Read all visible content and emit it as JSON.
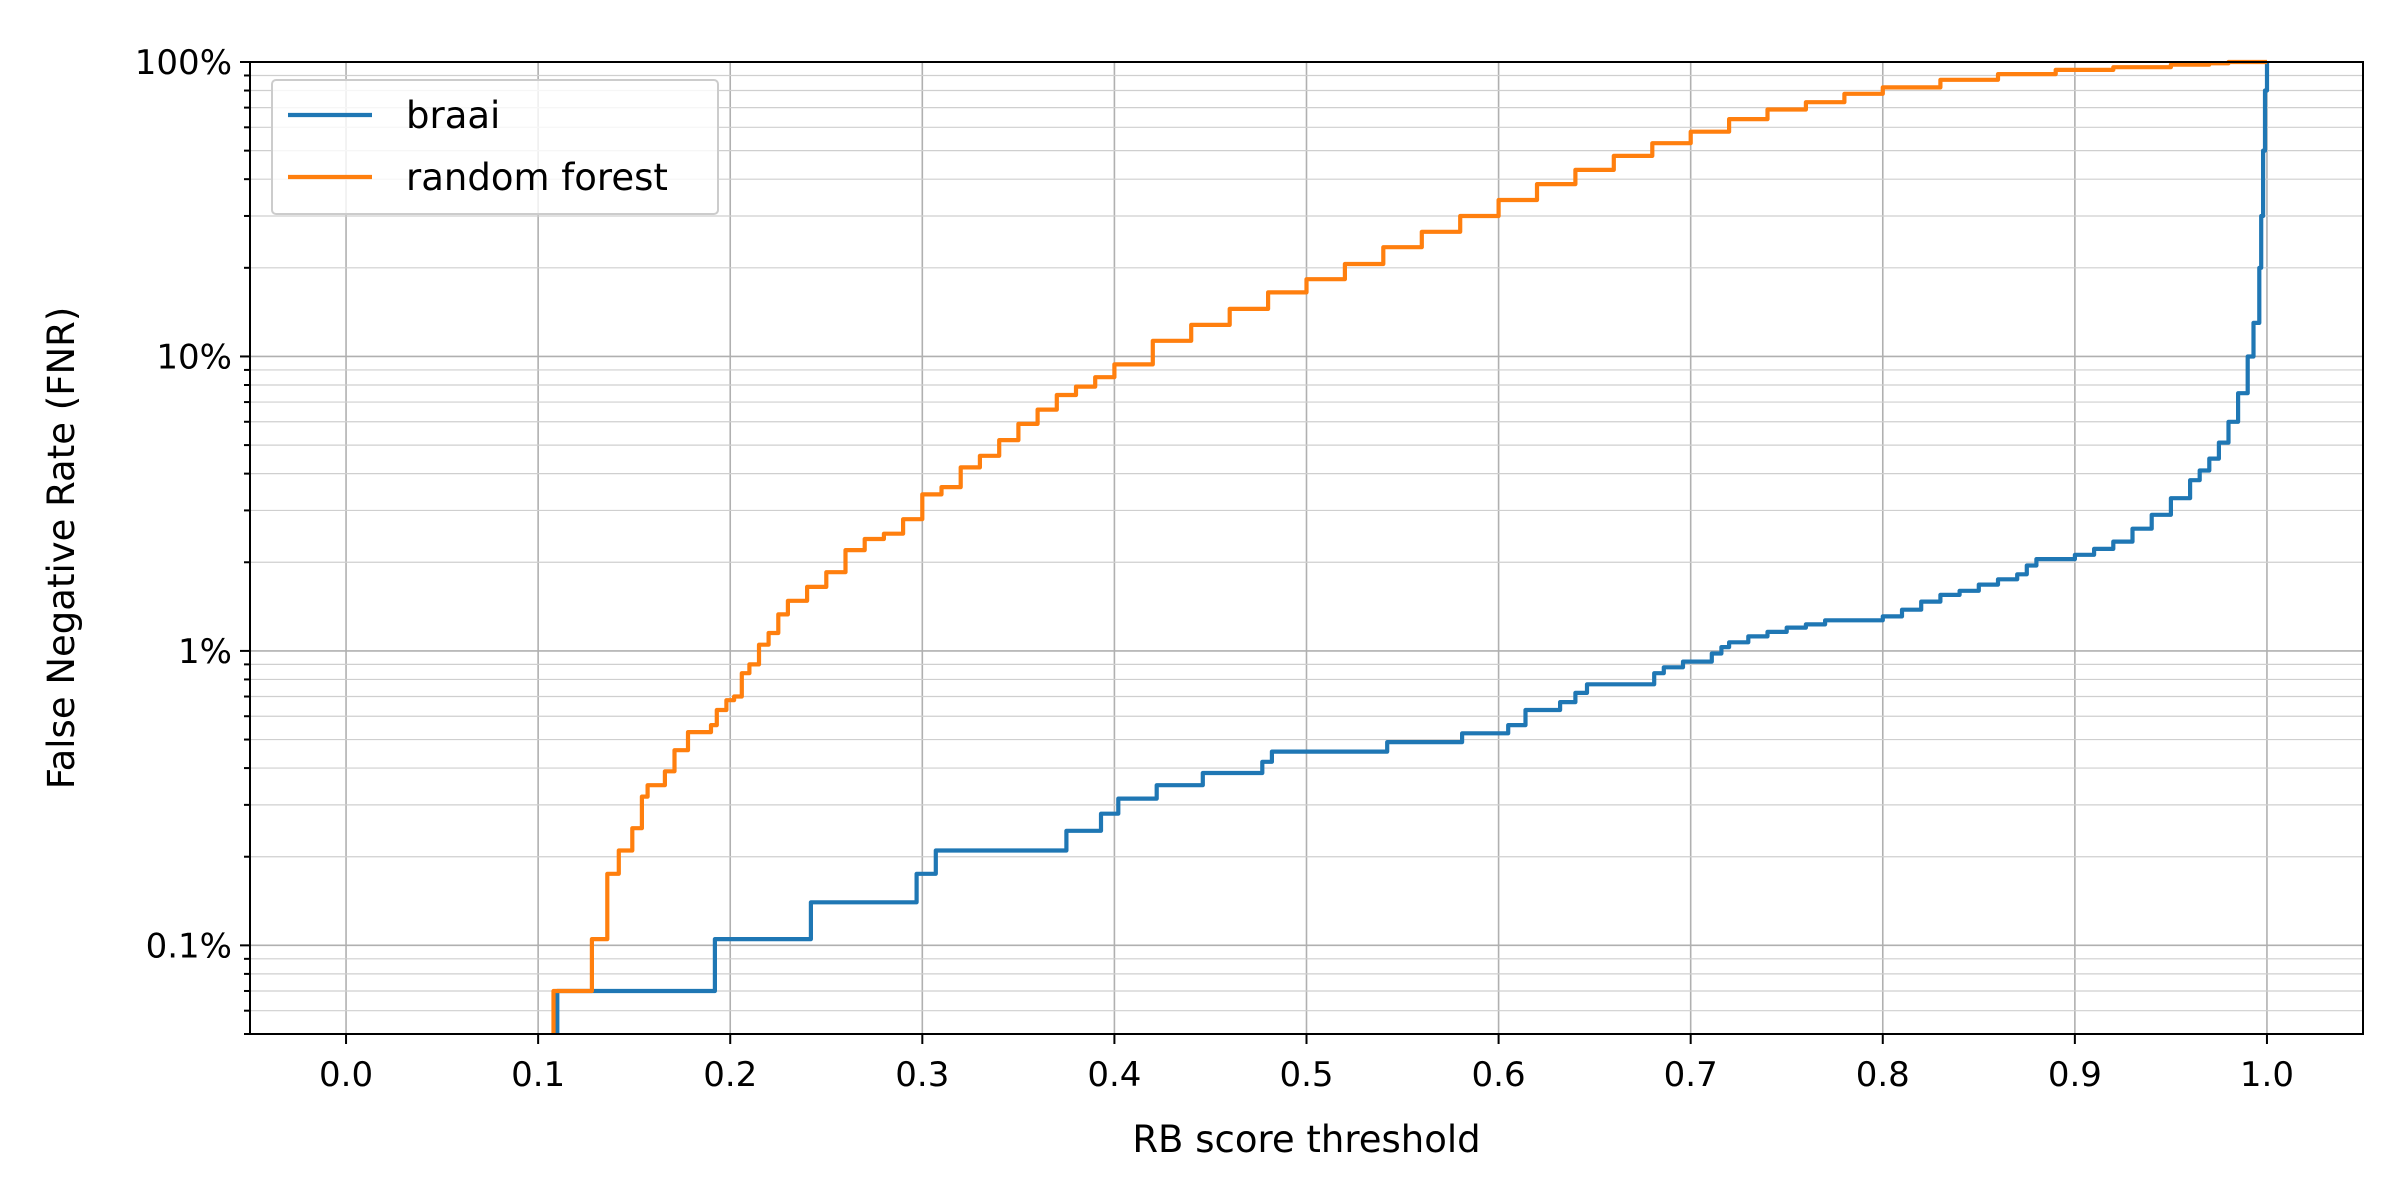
{
  "chart_data": {
    "type": "line",
    "title": "",
    "xlabel": "RB score threshold",
    "ylabel": "False Negative Rate (FNR)",
    "xlim": [
      -0.05,
      1.05
    ],
    "ylim": [
      0.0005,
      1.0
    ],
    "yscale": "log",
    "grid": true,
    "grid_minor_y": true,
    "legend_position": "top-left",
    "x_ticks": [
      0.0,
      0.1,
      0.2,
      0.3,
      0.4,
      0.5,
      0.6,
      0.7,
      0.8,
      0.9,
      1.0
    ],
    "x_tick_labels": [
      "0.0",
      "0.1",
      "0.2",
      "0.3",
      "0.4",
      "0.5",
      "0.6",
      "0.7",
      "0.8",
      "0.9",
      "1.0"
    ],
    "y_ticks": [
      0.001,
      0.01,
      0.1,
      1.0
    ],
    "y_tick_labels": [
      "0.1%",
      "1%",
      "10%",
      "100%"
    ],
    "series": [
      {
        "name": "braai",
        "color": "#1f77b4",
        "step": true,
        "x": [
          0.11,
          0.11,
          0.19,
          0.192,
          0.24,
          0.242,
          0.296,
          0.297,
          0.306,
          0.307,
          0.374,
          0.375,
          0.392,
          0.393,
          0.401,
          0.402,
          0.421,
          0.422,
          0.445,
          0.446,
          0.476,
          0.477,
          0.481,
          0.482,
          0.541,
          0.542,
          0.58,
          0.581,
          0.604,
          0.605,
          0.613,
          0.614,
          0.631,
          0.632,
          0.638,
          0.64,
          0.645,
          0.646,
          0.68,
          0.681,
          0.685,
          0.686,
          0.695,
          0.696,
          0.71,
          0.711,
          0.716,
          0.72,
          0.73,
          0.74,
          0.75,
          0.76,
          0.77,
          0.8,
          0.81,
          0.82,
          0.83,
          0.84,
          0.85,
          0.86,
          0.87,
          0.875,
          0.88,
          0.9,
          0.91,
          0.92,
          0.93,
          0.94,
          0.95,
          0.96,
          0.965,
          0.97,
          0.975,
          0.98,
          0.985,
          0.99,
          0.993,
          0.996,
          0.997,
          0.998,
          0.999,
          1.0
        ],
        "y": [
          0.0005,
          0.0007,
          0.0007,
          0.00105,
          0.00105,
          0.0014,
          0.0014,
          0.00175,
          0.00175,
          0.0021,
          0.0021,
          0.00245,
          0.00245,
          0.0028,
          0.0028,
          0.00315,
          0.00315,
          0.0035,
          0.0035,
          0.00385,
          0.00385,
          0.0042,
          0.0042,
          0.00455,
          0.00455,
          0.0049,
          0.0049,
          0.00525,
          0.00525,
          0.0056,
          0.0056,
          0.0063,
          0.0063,
          0.0067,
          0.0067,
          0.0072,
          0.0072,
          0.0077,
          0.0077,
          0.0084,
          0.0084,
          0.0088,
          0.0088,
          0.0092,
          0.0092,
          0.0098,
          0.0103,
          0.0107,
          0.0112,
          0.0116,
          0.012,
          0.0123,
          0.0127,
          0.0131,
          0.0138,
          0.0147,
          0.0155,
          0.016,
          0.0168,
          0.0175,
          0.0182,
          0.0195,
          0.0205,
          0.0212,
          0.0222,
          0.0235,
          0.026,
          0.029,
          0.033,
          0.038,
          0.041,
          0.045,
          0.051,
          0.06,
          0.075,
          0.1,
          0.13,
          0.2,
          0.3,
          0.5,
          0.8,
          1.0
        ]
      },
      {
        "name": "random forest",
        "color": "#ff7f0e",
        "step": true,
        "x": [
          0.108,
          0.108,
          0.127,
          0.128,
          0.135,
          0.136,
          0.141,
          0.142,
          0.148,
          0.149,
          0.153,
          0.154,
          0.156,
          0.157,
          0.165,
          0.166,
          0.17,
          0.171,
          0.178,
          0.179,
          0.19,
          0.193,
          0.198,
          0.202,
          0.206,
          0.21,
          0.215,
          0.22,
          0.225,
          0.23,
          0.24,
          0.25,
          0.26,
          0.27,
          0.28,
          0.29,
          0.3,
          0.31,
          0.32,
          0.33,
          0.34,
          0.35,
          0.36,
          0.37,
          0.38,
          0.39,
          0.4,
          0.42,
          0.44,
          0.46,
          0.48,
          0.5,
          0.52,
          0.54,
          0.56,
          0.58,
          0.6,
          0.62,
          0.64,
          0.66,
          0.68,
          0.7,
          0.72,
          0.74,
          0.76,
          0.78,
          0.8,
          0.83,
          0.86,
          0.89,
          0.92,
          0.95,
          0.97,
          0.98,
          0.99,
          1.0
        ],
        "y": [
          0.0005,
          0.0007,
          0.0007,
          0.00105,
          0.00105,
          0.00175,
          0.00175,
          0.0021,
          0.0021,
          0.0025,
          0.0025,
          0.0032,
          0.0032,
          0.0035,
          0.0035,
          0.0039,
          0.0039,
          0.0046,
          0.0053,
          0.0053,
          0.0056,
          0.0063,
          0.0068,
          0.007,
          0.0084,
          0.009,
          0.0105,
          0.0115,
          0.0133,
          0.0148,
          0.0165,
          0.0185,
          0.022,
          0.024,
          0.025,
          0.028,
          0.034,
          0.036,
          0.042,
          0.046,
          0.052,
          0.059,
          0.066,
          0.074,
          0.079,
          0.085,
          0.094,
          0.113,
          0.128,
          0.145,
          0.165,
          0.183,
          0.206,
          0.235,
          0.265,
          0.3,
          0.34,
          0.385,
          0.43,
          0.48,
          0.53,
          0.58,
          0.64,
          0.69,
          0.73,
          0.78,
          0.82,
          0.87,
          0.91,
          0.94,
          0.96,
          0.98,
          0.99,
          1.0,
          1.0,
          1.0
        ]
      }
    ]
  }
}
